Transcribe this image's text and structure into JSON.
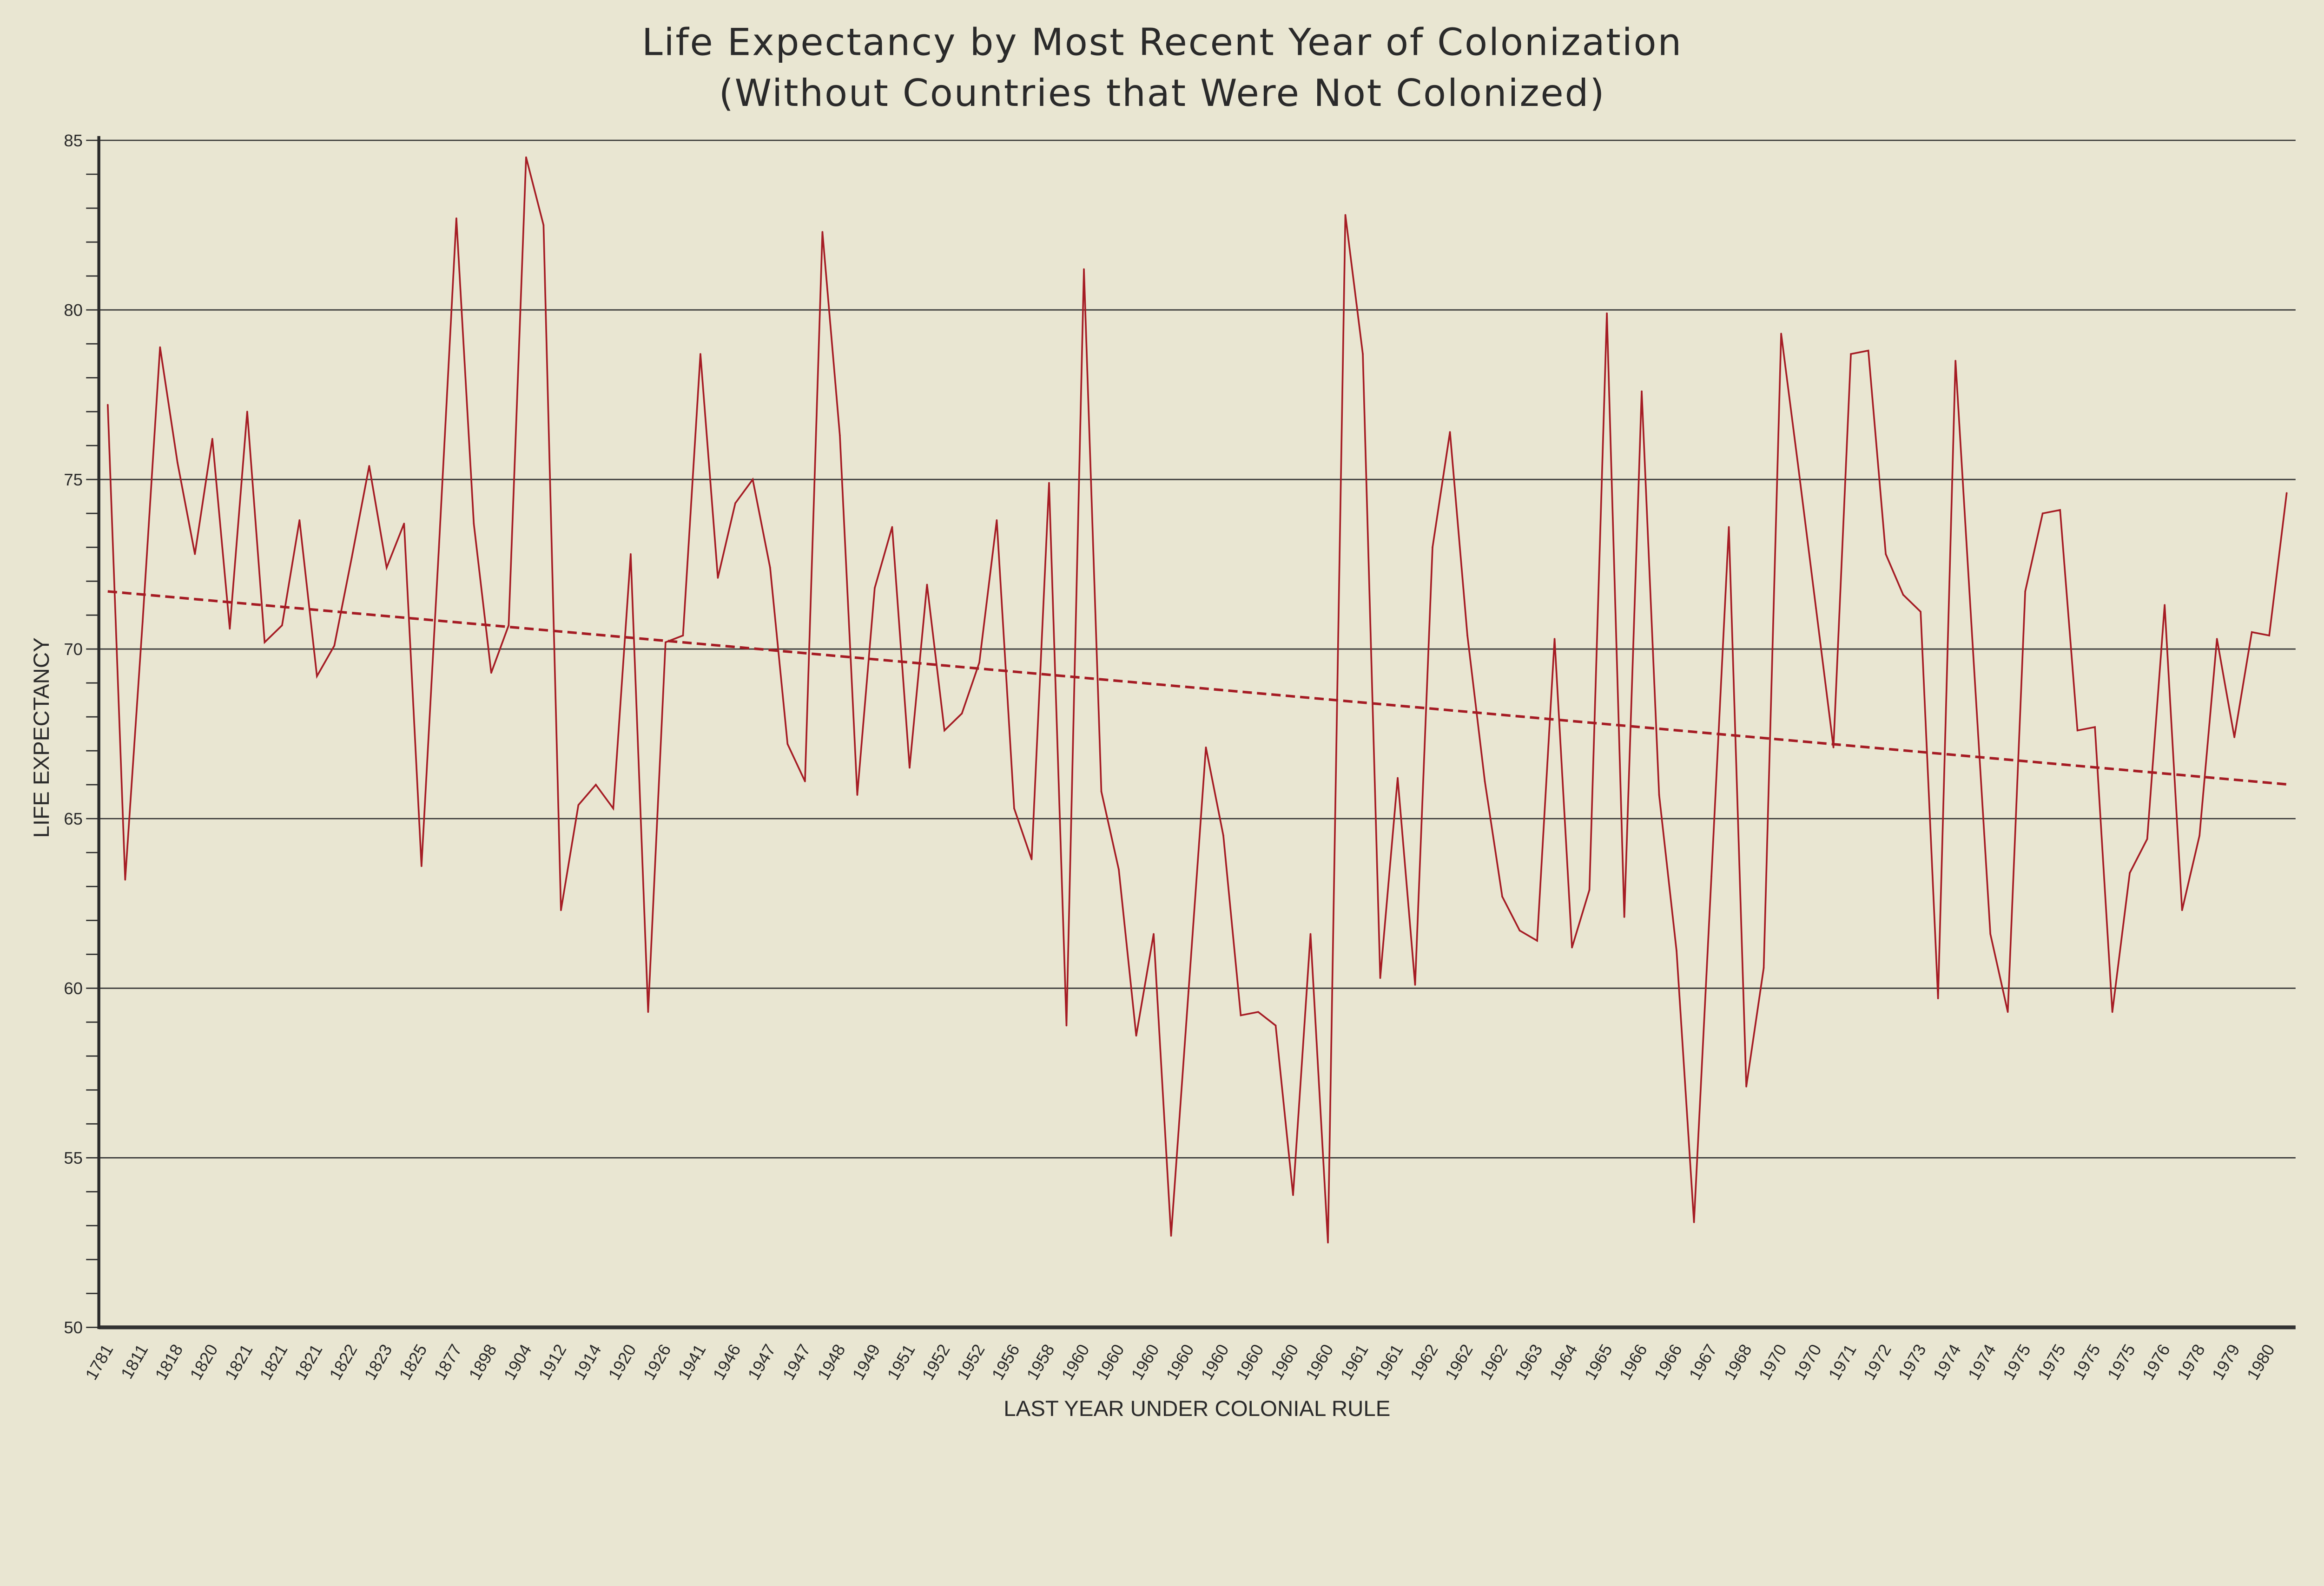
{
  "chart_data": {
    "type": "line",
    "title": "Life Expectancy by Most Recent Year of Colonization",
    "subtitle": "(Without Countries that Were Not Colonized)",
    "xlabel": "LAST YEAR UNDER COLONIAL RULE",
    "ylabel": "LIFE EXPECTANCY",
    "ylim": [
      50,
      85
    ],
    "yticks": [
      50,
      55,
      60,
      65,
      70,
      75,
      80,
      85
    ],
    "grid": "horizontal",
    "legend": "none",
    "colors": {
      "line": "#a51c24",
      "trend": "#a51c24",
      "background": "#e9e6d2",
      "grid": "#333333"
    },
    "tick_label_every": 2,
    "tick_labels": [
      "1781",
      "1811",
      "1818",
      "1820",
      "1821",
      "1821",
      "1821",
      "1822",
      "1823",
      "1825",
      "1877",
      "1898",
      "1904",
      "1912",
      "1914",
      "1920",
      "1926",
      "1941",
      "1946",
      "1947",
      "1947",
      "1948",
      "1949",
      "1951",
      "1952",
      "1952",
      "1956",
      "1958",
      "1960",
      "1960",
      "1960",
      "1960",
      "1960",
      "1960",
      "1960",
      "1960",
      "1961",
      "1961",
      "1962",
      "1962",
      "1962",
      "1963",
      "1964",
      "1965",
      "1966",
      "1966",
      "1967",
      "1968",
      "1970",
      "1970",
      "1971",
      "1972",
      "1973",
      "1974",
      "1974",
      "1975",
      "1975",
      "1975",
      "1975",
      "1976",
      "1978",
      "1979",
      "1980"
    ],
    "values": [
      77.2,
      63.2,
      70.8,
      78.9,
      75.5,
      72.8,
      76.2,
      70.6,
      77.0,
      70.2,
      70.7,
      73.8,
      69.2,
      70.1,
      72.7,
      75.4,
      72.4,
      73.7,
      63.6,
      73.0,
      82.7,
      73.7,
      69.3,
      70.7,
      84.5,
      82.5,
      62.3,
      65.4,
      66.0,
      65.3,
      72.8,
      59.3,
      70.2,
      70.4,
      78.7,
      72.1,
      74.3,
      75.0,
      72.4,
      67.2,
      66.1,
      82.3,
      76.3,
      65.7,
      71.8,
      73.6,
      66.5,
      71.9,
      67.6,
      68.1,
      69.6,
      73.8,
      65.3,
      63.8,
      74.9,
      58.9,
      81.2,
      65.8,
      63.5,
      58.6,
      61.6,
      52.7,
      59.9,
      67.1,
      64.5,
      59.2,
      59.3,
      58.9,
      53.9,
      61.6,
      52.5,
      82.8,
      78.7,
      60.3,
      66.2,
      60.1,
      73.0,
      76.4,
      70.4,
      66.1,
      62.7,
      61.7,
      61.4,
      70.3,
      61.2,
      62.9,
      79.9,
      62.1,
      77.6,
      65.7,
      61.1,
      53.1,
      63.3,
      73.6,
      57.1,
      60.6,
      79.3,
      75.3,
      71.2,
      67.1,
      78.7,
      78.8,
      72.8,
      71.6,
      71.1,
      59.7,
      78.5,
      70.0,
      61.6,
      59.3,
      71.7,
      74.0,
      74.1,
      67.6,
      67.7,
      59.3,
      63.4,
      64.4,
      71.3,
      62.3,
      64.5,
      70.3,
      67.4,
      70.5,
      70.4,
      74.6
    ],
    "trendline": {
      "style": "dashed",
      "start": 71.7,
      "end": 66.0
    }
  }
}
